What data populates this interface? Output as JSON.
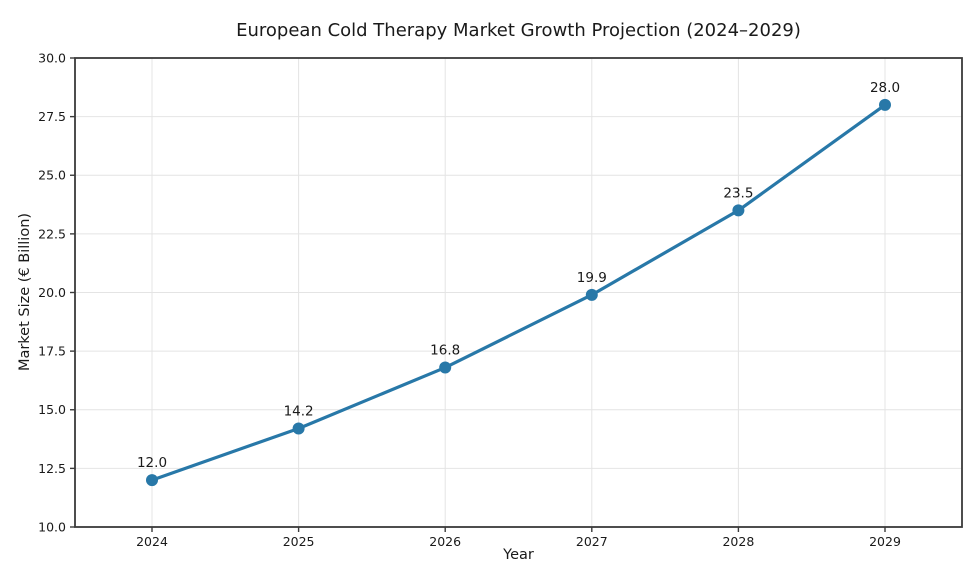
{
  "chart_data": {
    "type": "line",
    "title": "European Cold Therapy Market Growth Projection (2024–2029)",
    "xlabel": "Year",
    "ylabel": "Market Size (€ Billion)",
    "categories": [
      "2024",
      "2025",
      "2026",
      "2027",
      "2028",
      "2029"
    ],
    "series": [
      {
        "name": "Market Size",
        "values": [
          12.0,
          14.2,
          16.8,
          19.9,
          23.5,
          28.0
        ],
        "point_labels": [
          "12.0",
          "14.2",
          "16.8",
          "19.9",
          "23.5",
          "28.0"
        ]
      }
    ],
    "ylim": [
      10.0,
      30.0
    ],
    "yticks": [
      10.0,
      12.5,
      15.0,
      17.5,
      20.0,
      22.5,
      25.0,
      27.5,
      30.0
    ],
    "ytick_format_decimals": 1,
    "grid": true,
    "legend_position": "none",
    "colors": {
      "line": "#2878a8",
      "marker": "#2878a8",
      "grid": "#e4e4e4",
      "spine": "#3b3b3b",
      "tick": "#3b3b3b",
      "text": "#1a1a1a",
      "plot_background": "#ffffff",
      "figure_background": "#ffffff"
    }
  }
}
